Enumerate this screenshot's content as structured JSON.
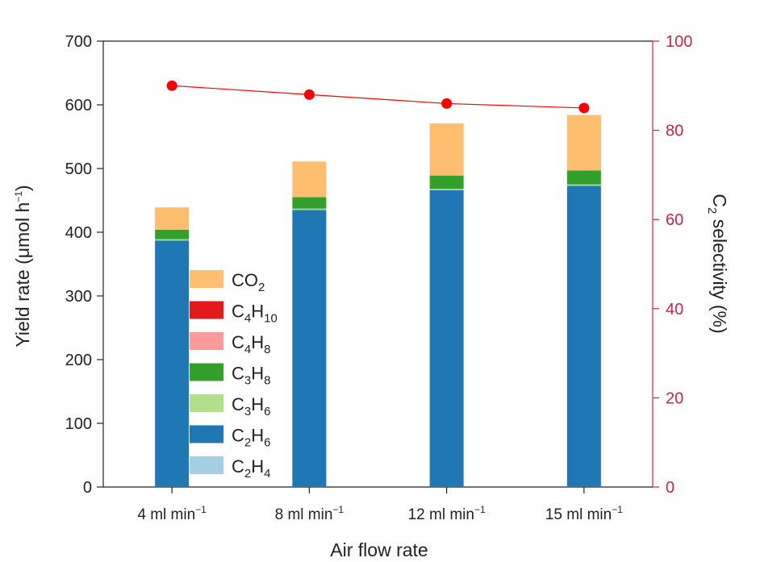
{
  "chart_data": {
    "type": "bar",
    "stacked": true,
    "xlabel": "Air flow rate",
    "ylabel": "Yield rate (μmol h⁻¹)",
    "ylabel_parts": {
      "main": "Yield rate (μmol h",
      "sup": "−1",
      "end": ")"
    },
    "y2label": "C2 selectivity (%)",
    "y2label_parts": {
      "c": "C",
      "sub": "2",
      "rest": " selectivity (%)"
    },
    "ylim": [
      0,
      700
    ],
    "y2lim": [
      0,
      100
    ],
    "yticks": [
      "0",
      "100",
      "200",
      "300",
      "400",
      "500",
      "600",
      "700"
    ],
    "y2ticks": [
      "0",
      "20",
      "40",
      "60",
      "80",
      "100"
    ],
    "categories": [
      "4 ml min−1",
      "8 ml min−1",
      "12 ml min−1",
      "15 ml min−1"
    ],
    "category_parts": [
      {
        "num": "4 ml min",
        "sup": "−1"
      },
      {
        "num": "8 ml min",
        "sup": "−1"
      },
      {
        "num": "12 ml min",
        "sup": "−1"
      },
      {
        "num": "15 ml min",
        "sup": "−1"
      }
    ],
    "series": [
      {
        "name": "C2H4",
        "color": "#a6cee3",
        "values": [
          0,
          0,
          0,
          0
        ]
      },
      {
        "name": "C2H6",
        "color": "#1f78b4",
        "values": [
          387,
          435,
          466,
          473
        ]
      },
      {
        "name": "C3H6",
        "color": "#b2df8a",
        "values": [
          2,
          2,
          2,
          2
        ]
      },
      {
        "name": "C3H8",
        "color": "#33a02c",
        "values": [
          15,
          18,
          21,
          22
        ]
      },
      {
        "name": "C4H8",
        "color": "#fb9a99",
        "values": [
          0,
          0,
          0,
          0
        ]
      },
      {
        "name": "C4H10",
        "color": "#e31a1c",
        "values": [
          0,
          0,
          0,
          0
        ]
      },
      {
        "name": "CO2",
        "color": "#fdbf6f",
        "values": [
          35,
          56,
          82,
          87
        ]
      }
    ],
    "selectivity": {
      "name": "C2 selectivity (%)",
      "color": "#ff0000",
      "values": [
        90,
        88,
        86,
        85
      ]
    },
    "legend": [
      {
        "key": "CO2",
        "base": "CO",
        "sub1": "2",
        "mid": "",
        "sub2": "",
        "color": "#fdbf6f"
      },
      {
        "key": "C4H10",
        "base": "C",
        "sub1": "4",
        "mid": "H",
        "sub2": "10",
        "color": "#e31a1c"
      },
      {
        "key": "C4H8",
        "base": "C",
        "sub1": "4",
        "mid": "H",
        "sub2": "8",
        "color": "#fb9a99"
      },
      {
        "key": "C3H8",
        "base": "C",
        "sub1": "3",
        "mid": "H",
        "sub2": "8",
        "color": "#33a02c"
      },
      {
        "key": "C3H6",
        "base": "C",
        "sub1": "3",
        "mid": "H",
        "sub2": "6",
        "color": "#b2df8a"
      },
      {
        "key": "C2H6",
        "base": "C",
        "sub1": "2",
        "mid": "H",
        "sub2": "6",
        "color": "#1f78b4"
      },
      {
        "key": "C2H4",
        "base": "C",
        "sub1": "2",
        "mid": "H",
        "sub2": "4",
        "color": "#a6cee3"
      }
    ],
    "legend_position": "lower-left",
    "grid": false,
    "right_axis_color": "#d4213d"
  }
}
